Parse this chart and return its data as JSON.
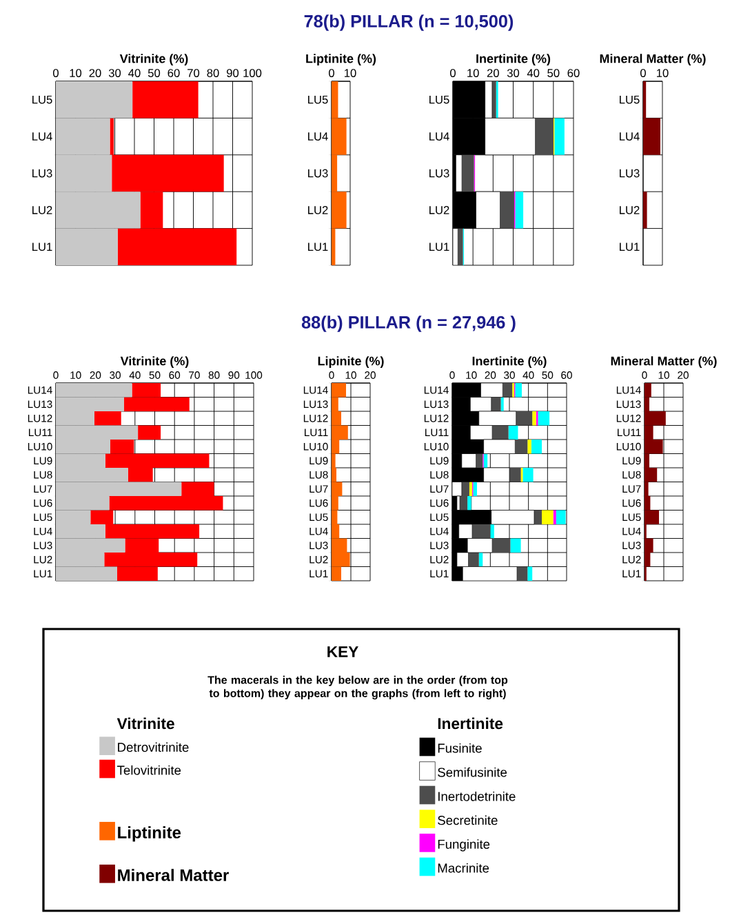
{
  "chart_data": [
    {
      "type": "other",
      "title": "78(b) PILLAR (n = 10,500)"
    },
    {
      "type": "bar",
      "orientation": "horizontal",
      "stacked": true,
      "xlabel": "Vitrinite (%)",
      "categories": [
        "LU5",
        "LU4",
        "LU3",
        "LU2",
        "LU1"
      ],
      "xlim": [
        0,
        100
      ],
      "xticks": [
        0,
        10,
        20,
        30,
        40,
        50,
        60,
        70,
        80,
        90,
        100
      ],
      "grid": true,
      "legend": "bottom",
      "legend_title": "Vitrinite",
      "series": [
        {
          "name": "Detrovitrinite",
          "color": "#c8c8c8",
          "values": [
            39,
            27.5,
            28.5,
            43,
            31.5
          ]
        },
        {
          "name": "Telovitrinite",
          "color": "#ff0000",
          "values": [
            33.5,
            2,
            57,
            11.5,
            60.5
          ]
        }
      ]
    },
    {
      "type": "bar",
      "orientation": "horizontal",
      "xlabel": "Liptinite (%)",
      "categories": [
        "LU5",
        "LU4",
        "LU3",
        "LU2",
        "LU1"
      ],
      "xlim": [
        0,
        10
      ],
      "xticks": [
        0,
        10
      ],
      "grid": true,
      "legend": "bottom",
      "series": [
        {
          "name": "Liptinite",
          "color": "#ff6600",
          "values": [
            3.5,
            8,
            3,
            8,
            2
          ]
        }
      ]
    },
    {
      "type": "bar",
      "orientation": "horizontal",
      "stacked": true,
      "xlabel": "Inertinite (%)",
      "categories": [
        "LU5",
        "LU4",
        "LU3",
        "LU2",
        "LU1"
      ],
      "xlim": [
        0,
        60
      ],
      "xticks": [
        0,
        10,
        20,
        30,
        40,
        50,
        60
      ],
      "grid": true,
      "legend": "bottom",
      "legend_title": "Inertinite",
      "series": [
        {
          "name": "Fusinite",
          "color": "#000000",
          "values": [
            16,
            16,
            1.5,
            11.5,
            0
          ]
        },
        {
          "name": "Semifusinite",
          "color": "#ffffff",
          "values": [
            3.5,
            25,
            3,
            12,
            2.5
          ]
        },
        {
          "name": "Inertodetrinite",
          "color": "#4d4d4d",
          "values": [
            2,
            9,
            6,
            7,
            2.5
          ]
        },
        {
          "name": "Secretinite",
          "color": "#ffff00",
          "values": [
            0,
            0.5,
            0,
            0,
            0
          ]
        },
        {
          "name": "Funginite",
          "color": "#ff00ff",
          "values": [
            0,
            0,
            0.5,
            0.5,
            0
          ]
        },
        {
          "name": "Macrinite",
          "color": "#00ffff",
          "values": [
            1,
            5,
            0,
            4,
            0.5
          ]
        }
      ]
    },
    {
      "type": "bar",
      "orientation": "horizontal",
      "xlabel": "Mineral Matter (%)",
      "categories": [
        "LU5",
        "LU4",
        "LU3",
        "LU2",
        "LU1"
      ],
      "xlim": [
        0,
        10
      ],
      "xticks": [
        0,
        10
      ],
      "grid": true,
      "legend": "bottom",
      "series": [
        {
          "name": "Mineral Matter",
          "color": "#800000",
          "values": [
            1.5,
            9,
            0,
            2,
            0
          ]
        }
      ]
    },
    {
      "type": "other",
      "title": "88(b) PILLAR (n = 27,946 )"
    },
    {
      "type": "bar",
      "orientation": "horizontal",
      "stacked": true,
      "xlabel": "Vitrinite (%)",
      "categories": [
        "LU14",
        "LU13",
        "LU12",
        "LU11",
        "LU10",
        "LU9",
        "LU8",
        "LU7",
        "LU6",
        "LU5",
        "LU4",
        "LU3",
        "LU2",
        "LU1"
      ],
      "xlim": [
        0,
        100
      ],
      "xticks": [
        0,
        10,
        20,
        30,
        40,
        50,
        60,
        70,
        80,
        90,
        100
      ],
      "grid": true,
      "series": [
        {
          "color": "#c8c8c8",
          "values": [
            38.5,
            34.5,
            19.5,
            41.5,
            27.5,
            25,
            36.5,
            63.5,
            27,
            17.5,
            25,
            35,
            24.5,
            31
          ]
        },
        {
          "color": "#ff0000",
          "values": [
            14.5,
            33,
            13.5,
            11.5,
            12,
            52.5,
            12.5,
            16.5,
            57.5,
            11.5,
            47.5,
            17,
            47,
            20.5
          ]
        }
      ]
    },
    {
      "type": "bar",
      "orientation": "horizontal",
      "xlabel": "Lipinite (%)",
      "categories": [
        "LU14",
        "LU13",
        "LU12",
        "LU11",
        "LU10",
        "LU9",
        "LU8",
        "LU7",
        "LU6",
        "LU5",
        "LU4",
        "LU3",
        "LU2",
        "LU1"
      ],
      "xlim": [
        0,
        20
      ],
      "xticks": [
        0,
        10,
        20
      ],
      "grid": true,
      "series": [
        {
          "color": "#ff6600",
          "values": [
            7.5,
            3.5,
            5,
            8.5,
            4,
            2,
            2.5,
            5.5,
            3.5,
            3,
            4,
            8,
            9.5,
            5
          ]
        }
      ]
    },
    {
      "type": "bar",
      "orientation": "horizontal",
      "stacked": true,
      "xlabel": "Inertinite (%)",
      "categories": [
        "LU14",
        "LU13",
        "LU12",
        "LU11",
        "LU10",
        "LU9",
        "LU8",
        "LU7",
        "LU6",
        "LU5",
        "LU4",
        "LU3",
        "LU2",
        "LU1"
      ],
      "xlim": [
        0,
        60
      ],
      "xticks": [
        0,
        10,
        20,
        30,
        40,
        50,
        60
      ],
      "grid": true,
      "series": [
        {
          "color": "#000000",
          "values": [
            15,
            9.5,
            14,
            9.5,
            16.5,
            5,
            16.5,
            0,
            2.5,
            20.5,
            3.5,
            8,
            2.5,
            5.5
          ]
        },
        {
          "color": "#ffffff",
          "values": [
            11.5,
            11,
            19.5,
            11.5,
            16.5,
            7.5,
            13.5,
            5,
            1.5,
            22.5,
            7,
            13,
            6,
            28.5
          ]
        },
        {
          "color": "#4d4d4d",
          "values": [
            5,
            5,
            8.5,
            8.5,
            6.5,
            3.5,
            6,
            4,
            4,
            4,
            9.5,
            9.5,
            5.5,
            5.5
          ]
        },
        {
          "color": "#ffff00",
          "values": [
            1,
            0,
            2,
            0,
            2,
            0,
            1,
            1.5,
            0,
            6,
            0,
            0,
            0,
            0
          ]
        },
        {
          "color": "#ff00ff",
          "values": [
            0.5,
            0,
            1,
            0,
            0,
            0.5,
            0,
            0.5,
            0,
            1.5,
            0,
            0,
            0,
            0
          ]
        },
        {
          "color": "#00ffff",
          "values": [
            3.5,
            1.5,
            6,
            5,
            5.5,
            2,
            5.5,
            2,
            2,
            5,
            2,
            5.5,
            2,
            2.5
          ]
        }
      ]
    },
    {
      "type": "bar",
      "orientation": "horizontal",
      "xlabel": "Mineral Matter (%)",
      "categories": [
        "LU14",
        "LU13",
        "LU12",
        "LU11",
        "LU10",
        "LU9",
        "LU8",
        "LU7",
        "LU6",
        "LU5",
        "LU4",
        "LU3",
        "LU2",
        "LU1"
      ],
      "xlim": [
        0,
        20
      ],
      "xticks": [
        0,
        10,
        20
      ],
      "grid": true,
      "series": [
        {
          "color": "#800000",
          "values": [
            3.5,
            2.5,
            11,
            4.5,
            9.5,
            2.5,
            6.5,
            2,
            3,
            7.5,
            1,
            4.5,
            3,
            1
          ]
        }
      ]
    },
    {
      "type": "other",
      "title": "KEY",
      "subtitle": "The macerals in the key below are in the order (from top to bottom) they appear on the graphs (from left to right)"
    }
  ]
}
